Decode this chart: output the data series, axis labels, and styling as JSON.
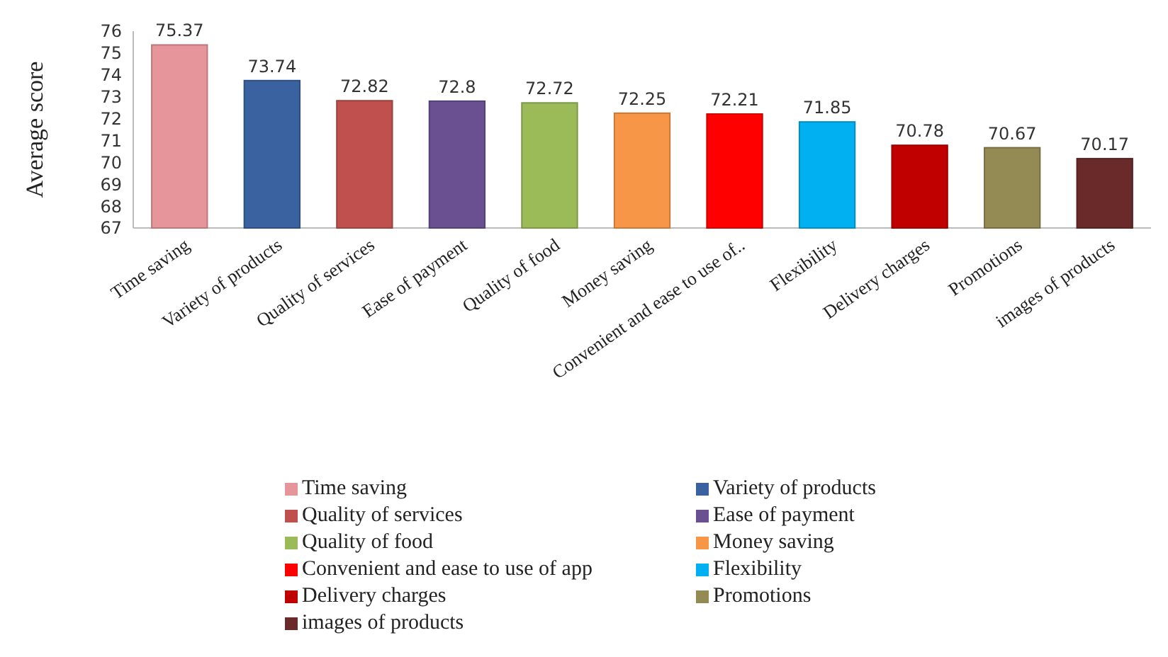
{
  "chart_data": {
    "type": "bar",
    "ylabel": "Average score",
    "categories": [
      "Time saving",
      "Variety of products",
      "Quality of services",
      "Ease of payment",
      "Quality of food",
      "Money saving",
      "Convenient and ease to use of..",
      "Flexibility",
      "Delivery charges",
      "Promotions",
      "images of products"
    ],
    "stacked": true,
    "data_labels": true,
    "legend": "bottom",
    "grid": false,
    "ylim": [
      67,
      76
    ],
    "yticks": [
      67,
      68,
      69,
      70,
      71,
      72,
      73,
      74,
      75,
      76
    ],
    "series": [
      {
        "name": "Time saving",
        "color": "#e6969a",
        "values": [
          75.37,
          null,
          null,
          null,
          null,
          null,
          null,
          null,
          null,
          null,
          null
        ]
      },
      {
        "name": "Variety of products",
        "color": "#3a62a0",
        "values": [
          null,
          73.74,
          null,
          null,
          null,
          null,
          null,
          null,
          null,
          null,
          null
        ]
      },
      {
        "name": "Quality of services",
        "color": "#c0504d",
        "values": [
          null,
          null,
          72.82,
          null,
          null,
          null,
          null,
          null,
          null,
          null,
          null
        ]
      },
      {
        "name": "Ease of payment",
        "color": "#6a5090",
        "values": [
          null,
          null,
          null,
          72.8,
          null,
          null,
          null,
          null,
          null,
          null,
          null
        ]
      },
      {
        "name": "Quality of food",
        "color": "#9bbb59",
        "values": [
          null,
          null,
          null,
          null,
          72.72,
          null,
          null,
          null,
          null,
          null,
          null
        ]
      },
      {
        "name": "Money saving",
        "color": "#f79646",
        "values": [
          null,
          null,
          null,
          null,
          null,
          72.25,
          null,
          null,
          null,
          null,
          null
        ]
      },
      {
        "name": "Convenient and ease to use of app",
        "color": "#ff0000",
        "values": [
          null,
          null,
          null,
          null,
          null,
          null,
          72.21,
          null,
          null,
          null,
          null
        ]
      },
      {
        "name": "Flexibility",
        "color": "#00b0f0",
        "values": [
          null,
          null,
          null,
          null,
          null,
          null,
          null,
          71.85,
          null,
          null,
          null
        ]
      },
      {
        "name": "Delivery charges",
        "color": "#c00000",
        "values": [
          null,
          null,
          null,
          null,
          null,
          null,
          null,
          null,
          70.78,
          null,
          null
        ]
      },
      {
        "name": "Promotions",
        "color": "#948a54",
        "values": [
          null,
          null,
          null,
          null,
          null,
          null,
          null,
          null,
          null,
          70.67,
          null
        ]
      },
      {
        "name": "images of products",
        "color": "#6b2a2a",
        "values": [
          null,
          null,
          null,
          null,
          null,
          null,
          null,
          null,
          null,
          null,
          70.17
        ]
      }
    ]
  }
}
